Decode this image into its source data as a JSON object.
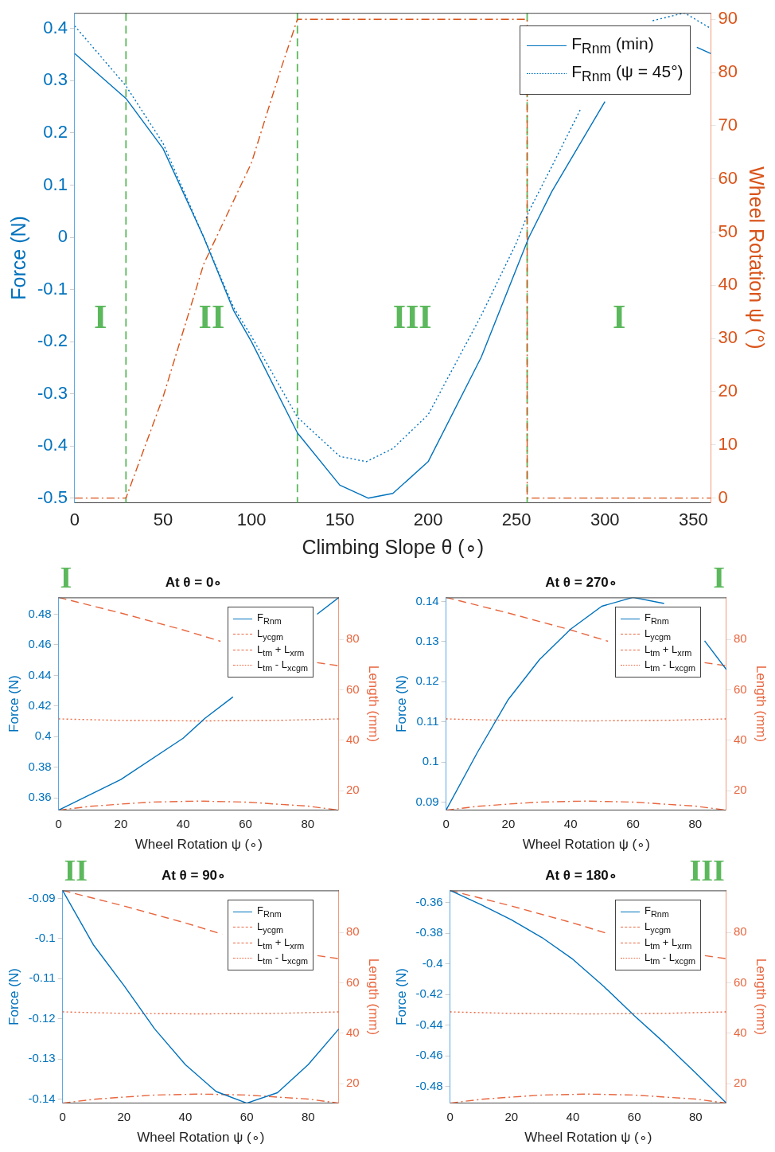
{
  "chart_data": [
    {
      "type": "line",
      "xlabel": "Climbing Slope θ (∘)",
      "ylabel": "Force (N)",
      "y2label": "Wheel Rotation ψ (°)",
      "xlim": [
        0,
        360
      ],
      "xticks": [
        0,
        50,
        100,
        150,
        200,
        250,
        300,
        350
      ],
      "ylim": [
        -0.509,
        0.43
      ],
      "yticks": [
        -0.5,
        -0.4,
        -0.3,
        -0.2,
        -0.1,
        0,
        0.1,
        0.2,
        0.3,
        0.4
      ],
      "y2lim": [
        -0.9,
        91.2
      ],
      "y2ticks": [
        0,
        10,
        20,
        30,
        40,
        50,
        60,
        70,
        80,
        90
      ],
      "legend": "top right",
      "series": [
        {
          "name": "F$_{Rnm}$ (min)",
          "color": "#0072bd",
          "line_style": "solid",
          "x": [
            0,
            29,
            50,
            73,
            90,
            100,
            126,
            150,
            166,
            180,
            200,
            230,
            257,
            270,
            300,
            320,
            340,
            352,
            360
          ],
          "values": [
            0.352,
            0.266,
            0.17,
            0,
            -0.141,
            -0.2,
            -0.375,
            -0.475,
            -0.5,
            -0.491,
            -0.43,
            -0.23,
            0,
            0.088,
            0.26,
            null,
            null,
            0.364,
            0.352
          ]
        },
        {
          "name": "F$_{Rnm}$ (ψ = 45°)",
          "color": "#0072bd",
          "line_style": "dotted",
          "x": [
            0,
            29,
            50,
            73,
            90,
            100,
            126,
            150,
            165,
            180,
            200,
            230,
            250,
            257,
            270,
            286,
            300,
            327,
            345,
            360
          ],
          "values": [
            0.405,
            0.29,
            0.18,
            0,
            -0.135,
            -0.19,
            -0.345,
            -0.42,
            -0.43,
            -0.405,
            -0.34,
            -0.15,
            -0.01,
            0.05,
            0.136,
            0.244,
            null,
            0.415,
            0.43,
            0.4
          ]
        },
        {
          "color": "#d95319",
          "line_style": "dashdot",
          "axis": "y2",
          "x": [
            0,
            29,
            50,
            73,
            100,
            116,
            126,
            256,
            256,
            360
          ],
          "values": [
            0,
            0,
            19,
            44,
            63,
            80,
            90,
            90,
            0,
            0
          ]
        }
      ],
      "ref_lines": [
        {
          "axis": "x",
          "value": 29,
          "color": "#5cb85c",
          "line_style": "dashed"
        },
        {
          "axis": "x",
          "value": 126,
          "color": "#5cb85c",
          "line_style": "dashed"
        },
        {
          "axis": "x",
          "value": 256,
          "color": "#5cb85c",
          "line_style": "dashed"
        }
      ],
      "annotations": [
        "I",
        "II",
        "III",
        "I"
      ]
    },
    {
      "type": "line",
      "title": "At θ = 0∘",
      "xlabel": "Wheel Rotation ψ (∘)",
      "ylabel": "Force (N)",
      "y2label": "Length (mm)",
      "xlim": [
        0,
        90
      ],
      "xticks": [
        0,
        20,
        40,
        60,
        80
      ],
      "ylim": [
        0.352,
        0.491
      ],
      "yticks": [
        0.36,
        0.38,
        0.4,
        0.42,
        0.44,
        0.46,
        0.48
      ],
      "y2lim": [
        12.3,
        96.7
      ],
      "y2ticks": [
        20,
        40,
        60,
        80
      ],
      "legend": "top right",
      "series": [
        {
          "name": "F$_{Rnm}$",
          "color": "#0072bd",
          "line_style": "solid",
          "x": [
            0,
            20,
            40,
            47,
            56,
            60,
            83,
            90
          ],
          "values": [
            0.352,
            0.372,
            0.399,
            0.412,
            0.426,
            null,
            0.48,
            0.491
          ]
        },
        {
          "name": "L$_{ycgm}$",
          "color": "#e8663f",
          "line_style": "dashdot",
          "axis": "y2",
          "x": [
            0,
            10,
            20,
            30,
            45,
            60,
            70,
            80,
            90
          ],
          "values": [
            12.3,
            13.8,
            14.7,
            15.5,
            15.9,
            15.5,
            14.7,
            13.9,
            12.3
          ]
        },
        {
          "name": "L$_{tm}$ + L$_{xrm}$",
          "color": "#e8663f",
          "line_style": "dashed",
          "axis": "y2",
          "x": [
            0,
            20,
            40,
            52,
            60,
            83,
            90
          ],
          "values": [
            96.7,
            90.5,
            83.8,
            79.3,
            null,
            70.8,
            69.6
          ]
        },
        {
          "name": "L$_{tm}$ - L$_{xcgm}$",
          "color": "#e8663f",
          "line_style": "dotted",
          "axis": "y2",
          "x": [
            0,
            20,
            45,
            70,
            90
          ],
          "values": [
            48.5,
            47.9,
            47.7,
            47.9,
            48.5
          ]
        }
      ],
      "annotations": [
        "I"
      ]
    },
    {
      "type": "line",
      "title": "At θ = 270∘",
      "xlabel": "Wheel Rotation ψ (∘)",
      "ylabel": "Force (N)",
      "y2label": "Length (mm)",
      "xlim": [
        0,
        90
      ],
      "xticks": [
        0,
        20,
        40,
        60,
        80
      ],
      "ylim": [
        0.088,
        0.141
      ],
      "yticks": [
        0.09,
        0.1,
        0.11,
        0.12,
        0.13,
        0.14
      ],
      "y2lim": [
        12.3,
        96.7
      ],
      "y2ticks": [
        20,
        40,
        60,
        80
      ],
      "legend": "top right",
      "series": [
        {
          "name": "F$_{Rnm}$",
          "color": "#0072bd",
          "line_style": "solid",
          "x": [
            0,
            10,
            20,
            30,
            40,
            50,
            60,
            70,
            76,
            83,
            90
          ],
          "values": [
            0.088,
            0.1023,
            0.1156,
            0.1255,
            0.1331,
            0.1388,
            0.141,
            0.1395,
            null,
            0.1302,
            0.123
          ]
        },
        {
          "name": "L$_{ycgm}$",
          "color": "#e8663f",
          "line_style": "dashdot",
          "axis": "y2",
          "x": [
            0,
            10,
            20,
            30,
            45,
            60,
            70,
            80,
            90
          ],
          "values": [
            12.3,
            13.8,
            14.7,
            15.5,
            15.9,
            15.5,
            14.7,
            13.9,
            12.3
          ]
        },
        {
          "name": "L$_{tm}$ + L$_{xrm}$",
          "color": "#e8663f",
          "line_style": "dashed",
          "axis": "y2",
          "x": [
            0,
            20,
            40,
            52,
            60,
            83,
            90
          ],
          "values": [
            96.7,
            90.5,
            83.8,
            79.3,
            null,
            70.8,
            69.6
          ]
        },
        {
          "name": "L$_{tm}$ - L$_{xcgm}$",
          "color": "#e8663f",
          "line_style": "dotted",
          "axis": "y2",
          "x": [
            0,
            20,
            45,
            70,
            90
          ],
          "values": [
            48.5,
            47.9,
            47.7,
            47.9,
            48.5
          ]
        }
      ],
      "annotations": [
        "I"
      ]
    },
    {
      "type": "line",
      "title": "At θ = 90∘",
      "xlabel": "Wheel Rotation ψ (∘)",
      "ylabel": "Force (N)",
      "y2label": "Length (mm)",
      "xlim": [
        0,
        90
      ],
      "xticks": [
        0,
        20,
        40,
        60,
        80
      ],
      "ylim": [
        -0.141,
        -0.088
      ],
      "yticks": [
        -0.14,
        -0.13,
        -0.12,
        -0.11,
        -0.1,
        -0.09
      ],
      "y2lim": [
        12.3,
        96.7
      ],
      "y2ticks": [
        20,
        40,
        60,
        80
      ],
      "legend": "top right",
      "series": [
        {
          "name": "F$_{Rnm}$",
          "color": "#0072bd",
          "line_style": "solid",
          "x": [
            0,
            10,
            20,
            30,
            40,
            50,
            60,
            70,
            80,
            90
          ],
          "values": [
            -0.088,
            -0.1015,
            -0.1117,
            -0.1225,
            -0.1314,
            -0.1381,
            -0.141,
            -0.1384,
            -0.1314,
            -0.1225
          ]
        },
        {
          "name": "L$_{ycgm}$",
          "color": "#e8663f",
          "line_style": "dashdot",
          "axis": "y2",
          "x": [
            0,
            10,
            20,
            30,
            45,
            60,
            70,
            80,
            90
          ],
          "values": [
            12.3,
            13.8,
            14.7,
            15.5,
            15.9,
            15.5,
            14.7,
            13.9,
            12.3
          ]
        },
        {
          "name": "L$_{tm}$ + L$_{xrm}$",
          "color": "#e8663f",
          "line_style": "dashed",
          "axis": "y2",
          "x": [
            0,
            20,
            40,
            52,
            60,
            83,
            90
          ],
          "values": [
            96.7,
            90.5,
            83.8,
            79.3,
            null,
            70.8,
            69.6
          ]
        },
        {
          "name": "L$_{tm}$ - L$_{xcgm}$",
          "color": "#e8663f",
          "line_style": "dotted",
          "axis": "y2",
          "x": [
            0,
            20,
            45,
            70,
            90
          ],
          "values": [
            48.5,
            47.9,
            47.7,
            47.9,
            48.5
          ]
        }
      ],
      "annotations": [
        "II"
      ]
    },
    {
      "type": "line",
      "title": "At θ = 180∘",
      "xlabel": "Wheel Rotation ψ (∘)",
      "ylabel": "Force (N)",
      "y2label": "Length (mm)",
      "xlim": [
        0,
        90
      ],
      "xticks": [
        0,
        20,
        40,
        60,
        80
      ],
      "ylim": [
        -0.491,
        -0.352
      ],
      "yticks": [
        -0.48,
        -0.46,
        -0.44,
        -0.42,
        -0.4,
        -0.38,
        -0.36
      ],
      "y2lim": [
        12.3,
        96.7
      ],
      "y2ticks": [
        20,
        40,
        60,
        80
      ],
      "legend": "top right",
      "series": [
        {
          "name": "F$_{Rnm}$",
          "color": "#0072bd",
          "line_style": "solid",
          "x": [
            0,
            10,
            20,
            30,
            40,
            50,
            60,
            70,
            80,
            90
          ],
          "values": [
            -0.352,
            -0.3612,
            -0.3712,
            -0.3829,
            -0.397,
            -0.4146,
            -0.4338,
            -0.452,
            -0.4713,
            -0.491
          ]
        },
        {
          "name": "L$_{ycgm}$",
          "color": "#e8663f",
          "line_style": "dashdot",
          "axis": "y2",
          "x": [
            0,
            10,
            20,
            30,
            45,
            60,
            70,
            80,
            90
          ],
          "values": [
            12.3,
            13.8,
            14.7,
            15.5,
            15.9,
            15.5,
            14.7,
            13.9,
            12.3
          ]
        },
        {
          "name": "L$_{tm}$ + L$_{xrm}$",
          "color": "#e8663f",
          "line_style": "dashed",
          "axis": "y2",
          "x": [
            0,
            20,
            40,
            52,
            60,
            83,
            90
          ],
          "values": [
            96.7,
            90.5,
            83.8,
            79.3,
            null,
            70.8,
            69.6
          ]
        },
        {
          "name": "L$_{tm}$ - L$_{xcgm}$",
          "color": "#e8663f",
          "line_style": "dotted",
          "axis": "y2",
          "x": [
            0,
            20,
            45,
            70,
            90
          ],
          "values": [
            48.5,
            47.9,
            47.7,
            47.9,
            48.5
          ]
        }
      ],
      "annotations": [
        "III"
      ]
    }
  ]
}
